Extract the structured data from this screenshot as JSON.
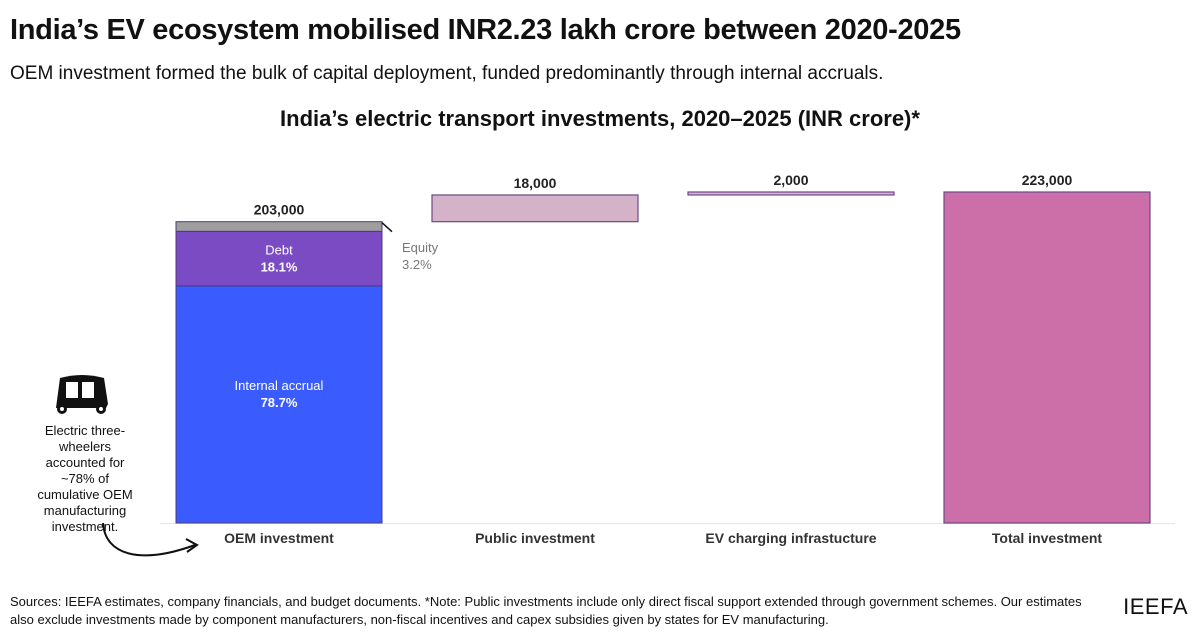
{
  "title": "India’s EV ecosystem mobilised INR2.23 lakh crore between 2020-2025",
  "subtitle": "OEM investment formed the bulk of capital deployment, funded predominantly through internal accruals.",
  "annotation": "Electric three-wheelers accounted for ~78% of cumulative OEM manufacturing investment.",
  "sources": "Sources: IEEFA estimates, company financials, and budget documents. *Note: Public investments include only direct fiscal support extended through government schemes. Our estimates also exclude investments made by component manufacturers, non-fiscal incentives and capex subsidies given by states for EV manufacturing.",
  "logo": "IEEFA",
  "chart_data": {
    "type": "bar",
    "subtype": "waterfall",
    "title": "India’s electric transport investments, 2020–2025 (INR crore)*",
    "categories": [
      "OEM investment",
      "Public investment",
      "EV charging infrastucture",
      "Total investment"
    ],
    "values": [
      203000,
      18000,
      2000,
      223000
    ],
    "data_labels": [
      "203,000",
      "18,000",
      "2,000",
      "223,000"
    ],
    "ylim": [
      0,
      223000
    ],
    "grid": false,
    "colors": [
      "#3a5cfe",
      "#d4b3c8",
      "#dcaedc",
      "#cc6fa8"
    ],
    "oem_breakdown": [
      {
        "name": "Internal accrual",
        "share": 78.7,
        "label": "78.7%",
        "color": "#3a5cfe"
      },
      {
        "name": "Debt",
        "share": 18.1,
        "label": "18.1%",
        "color": "#7b4bc4"
      },
      {
        "name": "Equity",
        "share": 3.2,
        "label": "3.2%",
        "color": "#9e9e9e"
      }
    ]
  }
}
